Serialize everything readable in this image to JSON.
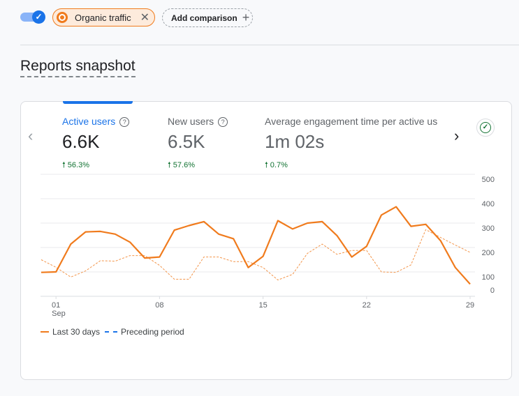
{
  "toolbar": {
    "comparison_chip": "Organic traffic",
    "add_comparison": "Add comparison"
  },
  "section_title": "Reports snapshot",
  "metrics": [
    {
      "name": "Active users",
      "value": "6.6K",
      "change": "56.3%",
      "selected": true
    },
    {
      "name": "New users",
      "value": "6.5K",
      "change": "57.6%"
    },
    {
      "name": "Average engagement time per active us",
      "value": "1m 02s",
      "change": "0.7%"
    }
  ],
  "colors": {
    "current": "#f07b1d",
    "preceding_legend": "#1a73e8",
    "accent": "#1a73e8",
    "positive": "#137333"
  },
  "chart_data": {
    "type": "line",
    "x": [
      "Aug 31",
      "Sep 01",
      "Sep 02",
      "Sep 03",
      "Sep 04",
      "Sep 05",
      "Sep 06",
      "Sep 07",
      "Sep 08",
      "Sep 09",
      "Sep 10",
      "Sep 11",
      "Sep 12",
      "Sep 13",
      "Sep 14",
      "Sep 15",
      "Sep 16",
      "Sep 17",
      "Sep 18",
      "Sep 19",
      "Sep 20",
      "Sep 21",
      "Sep 22",
      "Sep 23",
      "Sep 24",
      "Sep 25",
      "Sep 26",
      "Sep 27",
      "Sep 28",
      "Sep 29"
    ],
    "x_ticks": [
      "01",
      "08",
      "15",
      "22",
      "29"
    ],
    "x_tick_sub": "Sep",
    "y_ticks": [
      "500",
      "400",
      "300",
      "200",
      "100",
      "0"
    ],
    "ylim": [
      0,
      500
    ],
    "grid": true,
    "legend_placement": "bottom-left",
    "series": [
      {
        "name": "Last 30 days",
        "style": "solid",
        "values": [
          98,
          100,
          214,
          264,
          266,
          255,
          222,
          157,
          161,
          271,
          290,
          306,
          255,
          236,
          118,
          164,
          310,
          276,
          300,
          306,
          249,
          161,
          205,
          333,
          367,
          287,
          295,
          228,
          118,
          50
        ]
      },
      {
        "name": "Preceding period",
        "style": "dashed",
        "values": [
          150,
          119,
          79,
          104,
          146,
          144,
          167,
          167,
          127,
          70,
          70,
          161,
          161,
          142,
          142,
          118,
          67,
          90,
          176,
          214,
          172,
          188,
          188,
          100,
          98,
          129,
          273,
          241,
          210,
          180
        ]
      }
    ]
  }
}
